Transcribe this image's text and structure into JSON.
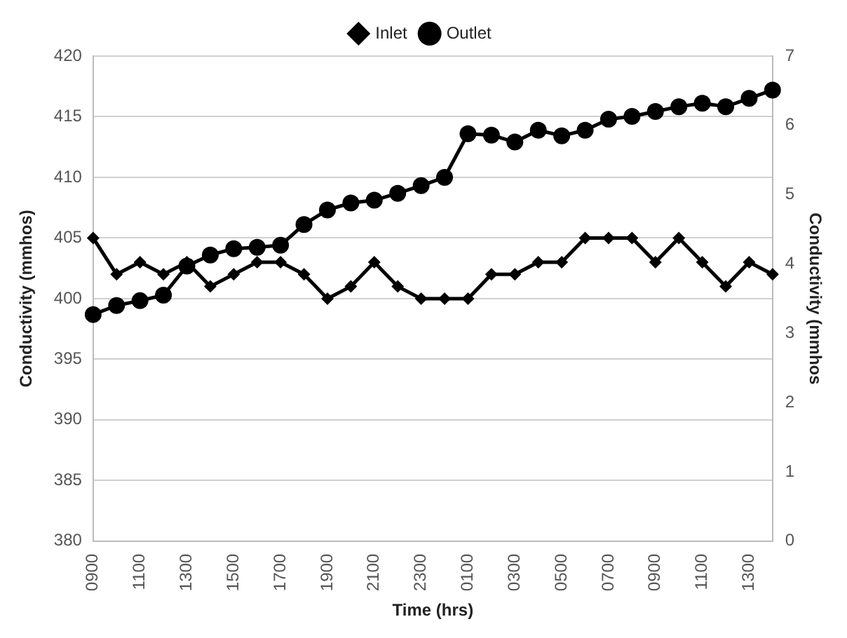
{
  "chart_data": {
    "type": "line",
    "xlabel": "Time (hrs)",
    "ylabel": "Conductivity (mmhos)",
    "y2label": "Conductivity (mmhos",
    "categories": [
      "0900",
      null,
      "1100",
      null,
      "1300",
      null,
      "1500",
      null,
      "1700",
      null,
      "1900",
      null,
      "2100",
      null,
      "2300",
      null,
      "0100",
      null,
      "0300",
      null,
      "0500",
      null,
      "0700",
      null,
      "0900",
      null,
      "1100",
      null,
      "1300",
      null
    ],
    "series": [
      {
        "name": "Inlet",
        "color": "#000000",
        "marker": "diamond",
        "values": [
          405,
          402,
          403,
          402,
          403,
          401,
          402,
          403,
          403,
          402,
          400,
          401,
          403,
          401,
          400,
          400,
          400,
          402,
          402,
          403,
          403,
          405,
          405,
          405,
          403,
          405,
          403,
          401,
          403,
          402
        ]
      },
      {
        "name": "Outlet",
        "color": "#000000",
        "marker": "circle",
        "axis": "y2",
        "values": [
          3.27,
          3.4,
          3.47,
          3.55,
          3.97,
          4.13,
          4.22,
          4.24,
          4.27,
          4.57,
          4.78,
          4.88,
          4.92,
          5.02,
          5.13,
          5.25,
          5.88,
          5.86,
          5.76,
          5.93,
          5.85,
          5.93,
          6.09,
          6.13,
          6.2,
          6.27,
          6.32,
          6.27,
          6.39,
          6.51
        ]
      }
    ],
    "ylim": [
      380,
      420
    ],
    "yticks": [
      380,
      385,
      390,
      395,
      400,
      405,
      410,
      415,
      420
    ],
    "y2lim": [
      0,
      7
    ],
    "y2ticks": [
      0,
      1,
      2,
      3,
      4,
      5,
      6,
      7
    ],
    "grid": "y",
    "legend": "top",
    "line_style": "solid"
  }
}
